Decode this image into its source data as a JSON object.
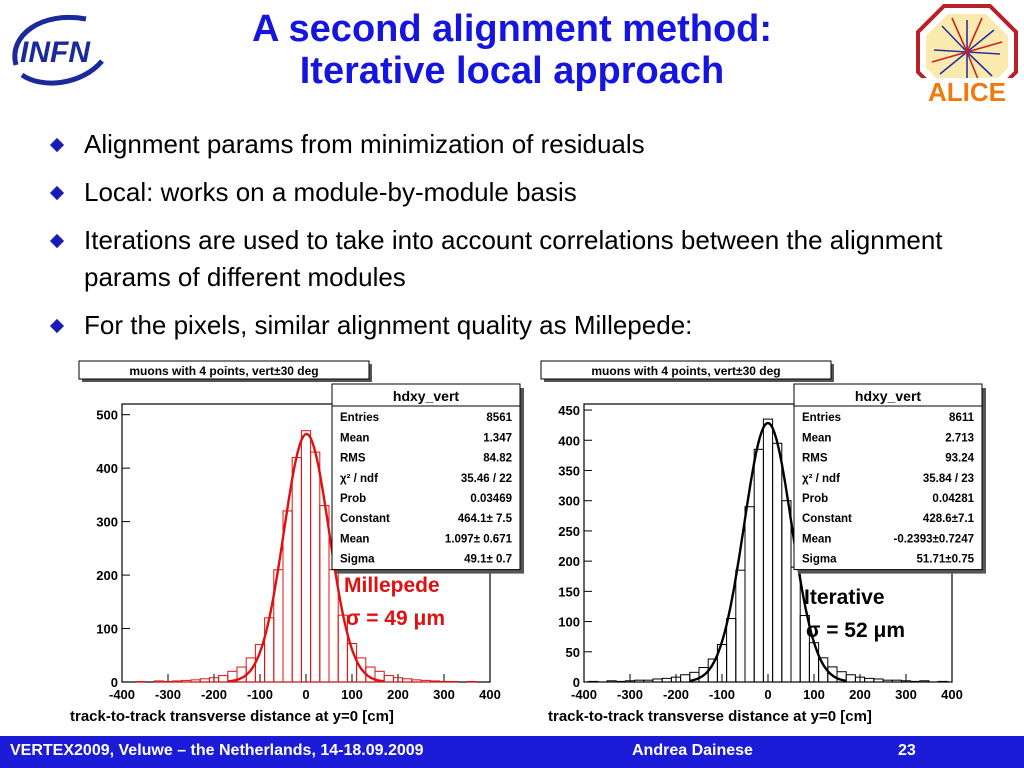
{
  "logos": {
    "left_text": "INFN",
    "right_text": "ALICE"
  },
  "title": {
    "line1": "A second alignment method:",
    "line2": "Iterative local approach"
  },
  "bullets": [
    "Alignment params from minimization of  residuals",
    "Local: works on a module-by-module basis",
    "Iterations are used to take into account correlations between the alignment params of different modules",
    "For the pixels, similar alignment quality as Millepede:"
  ],
  "chart_data": [
    {
      "type": "histogram",
      "title": "muons with 4 points, vert±30 deg",
      "xlabel": "track-to-track transverse distance at y=0 [cm]",
      "xlim": [
        -400,
        400
      ],
      "ylim": [
        0,
        520
      ],
      "xticks": [
        -400,
        -300,
        -200,
        -100,
        0,
        100,
        200,
        300,
        400
      ],
      "yticks": [
        0,
        100,
        200,
        300,
        400,
        500
      ],
      "hist_color": "#e01010",
      "fit_color": "#e01010",
      "stats_title": "hdxy_vert",
      "stats": [
        {
          "label": "Entries",
          "value": "8561"
        },
        {
          "label": "Mean",
          "value": "1.347"
        },
        {
          "label": "RMS",
          "value": "84.82"
        },
        {
          "label": "χ² / ndf",
          "value": "35.46 / 22"
        },
        {
          "label": "Prob",
          "value": "0.03469"
        },
        {
          "label": "Constant",
          "value": "464.1± 7.5"
        },
        {
          "label": "Mean",
          "value": "1.097± 0.671"
        },
        {
          "label": "Sigma",
          "value": "49.1± 0.7"
        }
      ],
      "fit": {
        "constant": 464.1,
        "mean": 1.097,
        "sigma": 49.1
      },
      "annotation": {
        "line1": "Millepede",
        "line2": "σ = 49 μm",
        "color": "#e01010"
      },
      "bins": [
        {
          "x": -380,
          "y": 0
        },
        {
          "x": -360,
          "y": 1
        },
        {
          "x": -340,
          "y": 0
        },
        {
          "x": -320,
          "y": 2
        },
        {
          "x": -300,
          "y": 1
        },
        {
          "x": -280,
          "y": 2
        },
        {
          "x": -260,
          "y": 3
        },
        {
          "x": -240,
          "y": 4
        },
        {
          "x": -220,
          "y": 6
        },
        {
          "x": -200,
          "y": 8
        },
        {
          "x": -180,
          "y": 12
        },
        {
          "x": -160,
          "y": 20
        },
        {
          "x": -140,
          "y": 28
        },
        {
          "x": -120,
          "y": 45
        },
        {
          "x": -100,
          "y": 70
        },
        {
          "x": -80,
          "y": 120
        },
        {
          "x": -60,
          "y": 210
        },
        {
          "x": -40,
          "y": 320
        },
        {
          "x": -20,
          "y": 420
        },
        {
          "x": 0,
          "y": 470
        },
        {
          "x": 20,
          "y": 430
        },
        {
          "x": 40,
          "y": 330
        },
        {
          "x": 60,
          "y": 210
        },
        {
          "x": 80,
          "y": 125
        },
        {
          "x": 100,
          "y": 72
        },
        {
          "x": 120,
          "y": 45
        },
        {
          "x": 140,
          "y": 28
        },
        {
          "x": 160,
          "y": 20
        },
        {
          "x": 180,
          "y": 12
        },
        {
          "x": 200,
          "y": 8
        },
        {
          "x": 220,
          "y": 6
        },
        {
          "x": 240,
          "y": 4
        },
        {
          "x": 260,
          "y": 3
        },
        {
          "x": 280,
          "y": 2
        },
        {
          "x": 300,
          "y": 1
        },
        {
          "x": 320,
          "y": 1
        },
        {
          "x": 340,
          "y": 0
        },
        {
          "x": 360,
          "y": 1
        },
        {
          "x": 380,
          "y": 0
        }
      ]
    },
    {
      "type": "histogram",
      "title": "muons with 4 points, vert±30 deg",
      "xlabel": "track-to-track transverse distance at y=0 [cm]",
      "xlim": [
        -400,
        400
      ],
      "ylim": [
        0,
        460
      ],
      "xticks": [
        -400,
        -300,
        -200,
        -100,
        0,
        100,
        200,
        300,
        400
      ],
      "yticks": [
        0,
        50,
        100,
        150,
        200,
        250,
        300,
        350,
        400,
        450
      ],
      "hist_color": "#000000",
      "fit_color": "#000000",
      "stats_title": "hdxy_vert",
      "stats": [
        {
          "label": "Entries",
          "value": "8611"
        },
        {
          "label": "Mean",
          "value": "2.713"
        },
        {
          "label": "RMS",
          "value": "93.24"
        },
        {
          "label": "χ² / ndf",
          "value": "35.84 / 23"
        },
        {
          "label": "Prob",
          "value": "0.04281"
        },
        {
          "label": "Constant",
          "value": "428.6±7.1"
        },
        {
          "label": "Mean",
          "value": "-0.2393±0.7247"
        },
        {
          "label": "Sigma",
          "value": "51.71±0.75"
        }
      ],
      "fit": {
        "constant": 428.6,
        "mean": -0.2393,
        "sigma": 51.71
      },
      "annotation": {
        "line1": "Iterative",
        "line2": "σ = 52 μm",
        "color": "#000000"
      },
      "bins": [
        {
          "x": -380,
          "y": 1
        },
        {
          "x": -360,
          "y": 0
        },
        {
          "x": -340,
          "y": 2
        },
        {
          "x": -320,
          "y": 1
        },
        {
          "x": -300,
          "y": 2
        },
        {
          "x": -280,
          "y": 3
        },
        {
          "x": -260,
          "y": 3
        },
        {
          "x": -240,
          "y": 5
        },
        {
          "x": -220,
          "y": 6
        },
        {
          "x": -200,
          "y": 8
        },
        {
          "x": -180,
          "y": 12
        },
        {
          "x": -160,
          "y": 16
        },
        {
          "x": -140,
          "y": 24
        },
        {
          "x": -120,
          "y": 38
        },
        {
          "x": -100,
          "y": 62
        },
        {
          "x": -80,
          "y": 105
        },
        {
          "x": -60,
          "y": 185
        },
        {
          "x": -40,
          "y": 290
        },
        {
          "x": -20,
          "y": 385
        },
        {
          "x": 0,
          "y": 435
        },
        {
          "x": 20,
          "y": 395
        },
        {
          "x": 40,
          "y": 300
        },
        {
          "x": 60,
          "y": 190
        },
        {
          "x": 80,
          "y": 110
        },
        {
          "x": 100,
          "y": 65
        },
        {
          "x": 120,
          "y": 40
        },
        {
          "x": 140,
          "y": 25
        },
        {
          "x": 160,
          "y": 17
        },
        {
          "x": 180,
          "y": 12
        },
        {
          "x": 200,
          "y": 8
        },
        {
          "x": 220,
          "y": 6
        },
        {
          "x": 240,
          "y": 5
        },
        {
          "x": 260,
          "y": 3
        },
        {
          "x": 280,
          "y": 3
        },
        {
          "x": 300,
          "y": 2
        },
        {
          "x": 320,
          "y": 1
        },
        {
          "x": 340,
          "y": 2
        },
        {
          "x": 360,
          "y": 0
        },
        {
          "x": 380,
          "y": 1
        }
      ]
    }
  ],
  "footer": {
    "left": "VERTEX2009, Veluwe – the Netherlands, 14-18.09.2009",
    "center": "Andrea Dainese",
    "page": "23",
    "color": "#1b1bd8"
  }
}
